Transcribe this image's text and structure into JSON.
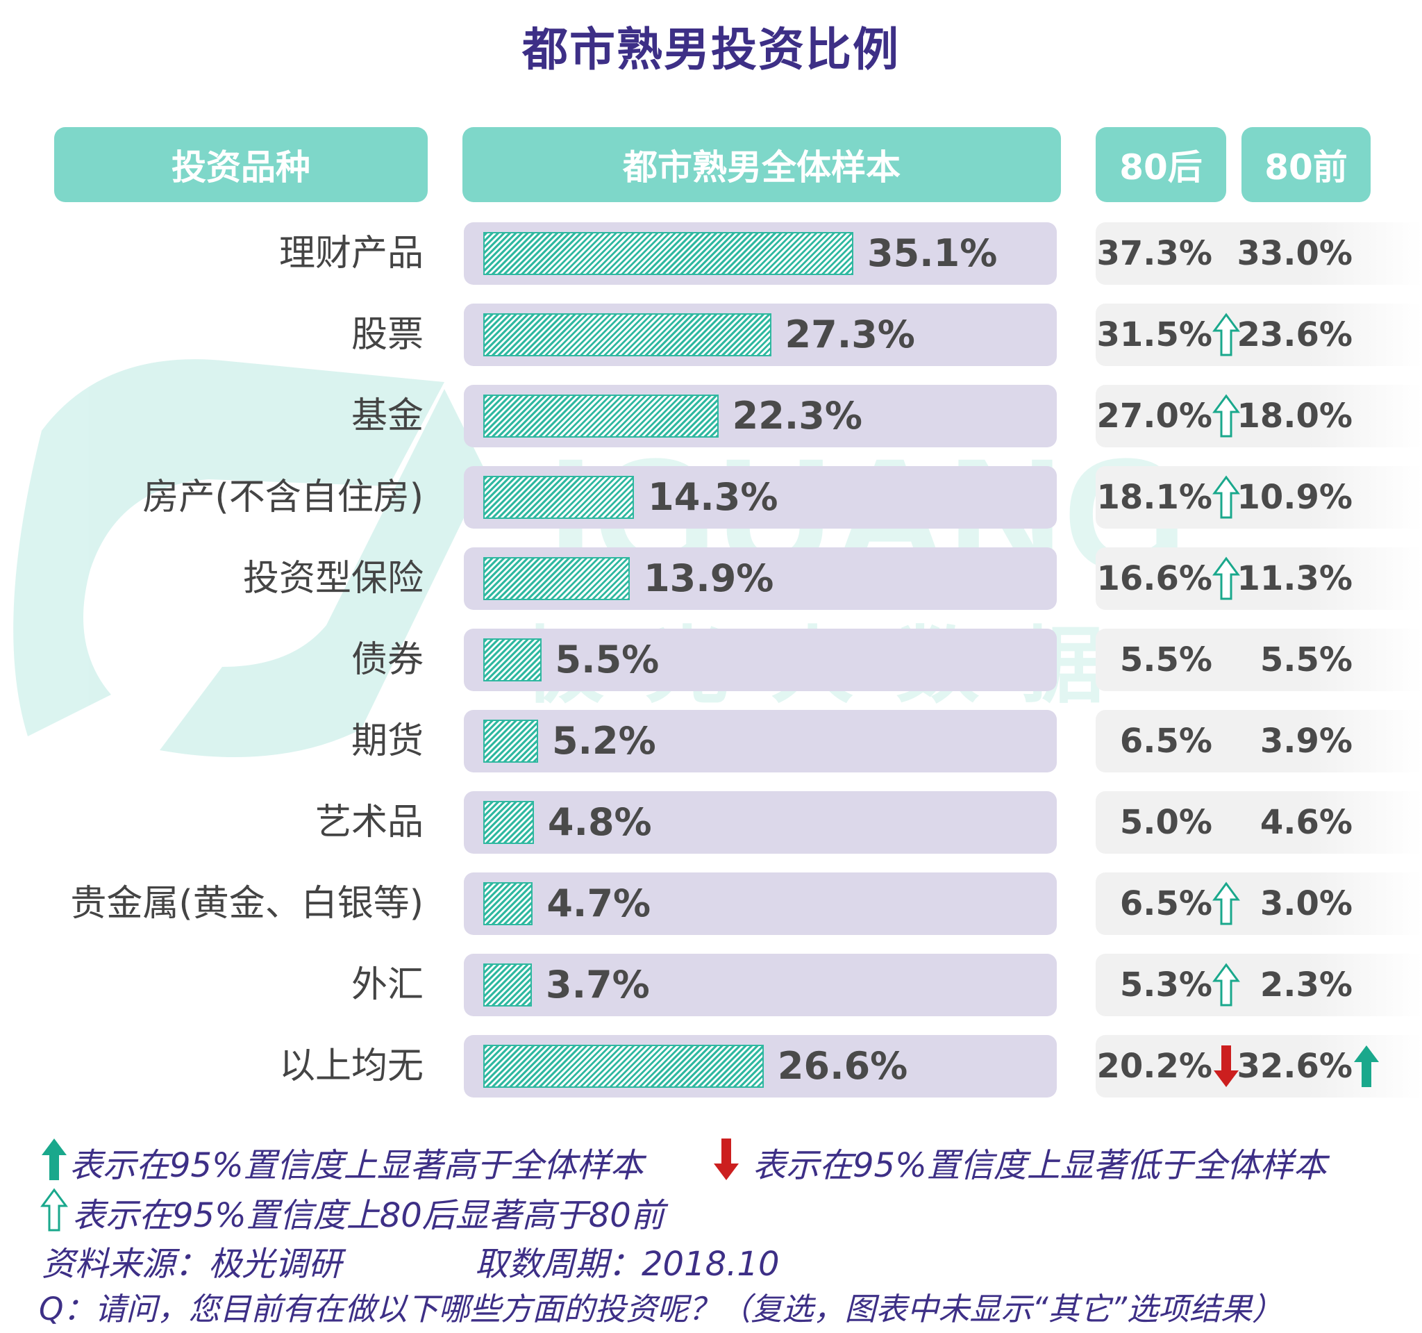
{
  "title": "都市熟男投资比例",
  "headers": {
    "category": "投资品种",
    "total": "都市熟男全体样本",
    "post80": "80后",
    "pre80": "80前"
  },
  "watermark": {
    "brand": "IGUANG",
    "cn": "极光大数据"
  },
  "colors": {
    "header_bg": "#7ed7c9",
    "bar": "#2fb8a0",
    "track": "#dcd8ea",
    "title": "#3d2f86",
    "up_sig": "#1aa88c",
    "down_sig": "#cc1f1f"
  },
  "chart_data": {
    "type": "bar",
    "orientation": "horizontal",
    "title": "都市熟男投资比例",
    "categories": [
      "理财产品",
      "股票",
      "基金",
      "房产(不含自住房)",
      "投资型保险",
      "债券",
      "期货",
      "艺术品",
      "贵金属(黄金、白银等)",
      "外汇",
      "以上均无"
    ],
    "series": [
      {
        "name": "都市熟男全体样本",
        "values": [
          35.1,
          27.3,
          22.3,
          14.3,
          13.9,
          5.5,
          5.2,
          4.8,
          4.7,
          3.7,
          26.6
        ]
      }
    ],
    "value_labels": [
      "35.1%",
      "27.3%",
      "22.3%",
      "14.3%",
      "13.9%",
      "5.5%",
      "5.2%",
      "4.8%",
      "4.7%",
      "3.7%",
      "26.6%"
    ],
    "post80_labels": [
      "37.3%",
      "31.5%",
      "27.0%",
      "18.1%",
      "16.6%",
      "5.5%",
      "6.5%",
      "5.0%",
      "6.5%",
      "5.3%",
      "20.2%"
    ],
    "pre80_labels": [
      "33.0%",
      "23.6%",
      "18.0%",
      "10.9%",
      "11.3%",
      "5.5%",
      "3.9%",
      "4.6%",
      "3.0%",
      "2.3%",
      "32.6%"
    ],
    "post80_markers": [
      "none",
      "hollow-up",
      "hollow-up",
      "hollow-up",
      "hollow-up",
      "none",
      "none",
      "none",
      "hollow-up",
      "hollow-up",
      "down"
    ],
    "pre80_markers": [
      "none",
      "none",
      "none",
      "none",
      "none",
      "none",
      "none",
      "none",
      "none",
      "none",
      "up"
    ]
  },
  "legend": {
    "up": "表示在95%置信度上显著高于全体样本",
    "down": "表示在95%置信度上显著低于全体样本",
    "hollow": "表示在95%置信度上80后显著高于80前"
  },
  "footer": {
    "source": "资料来源：极光调研",
    "period": "取数周期：2018.10",
    "question": "Q：请问，您目前有在做以下哪些方面的投资呢？（复选，图表中未显示“其它”选项结果）"
  }
}
